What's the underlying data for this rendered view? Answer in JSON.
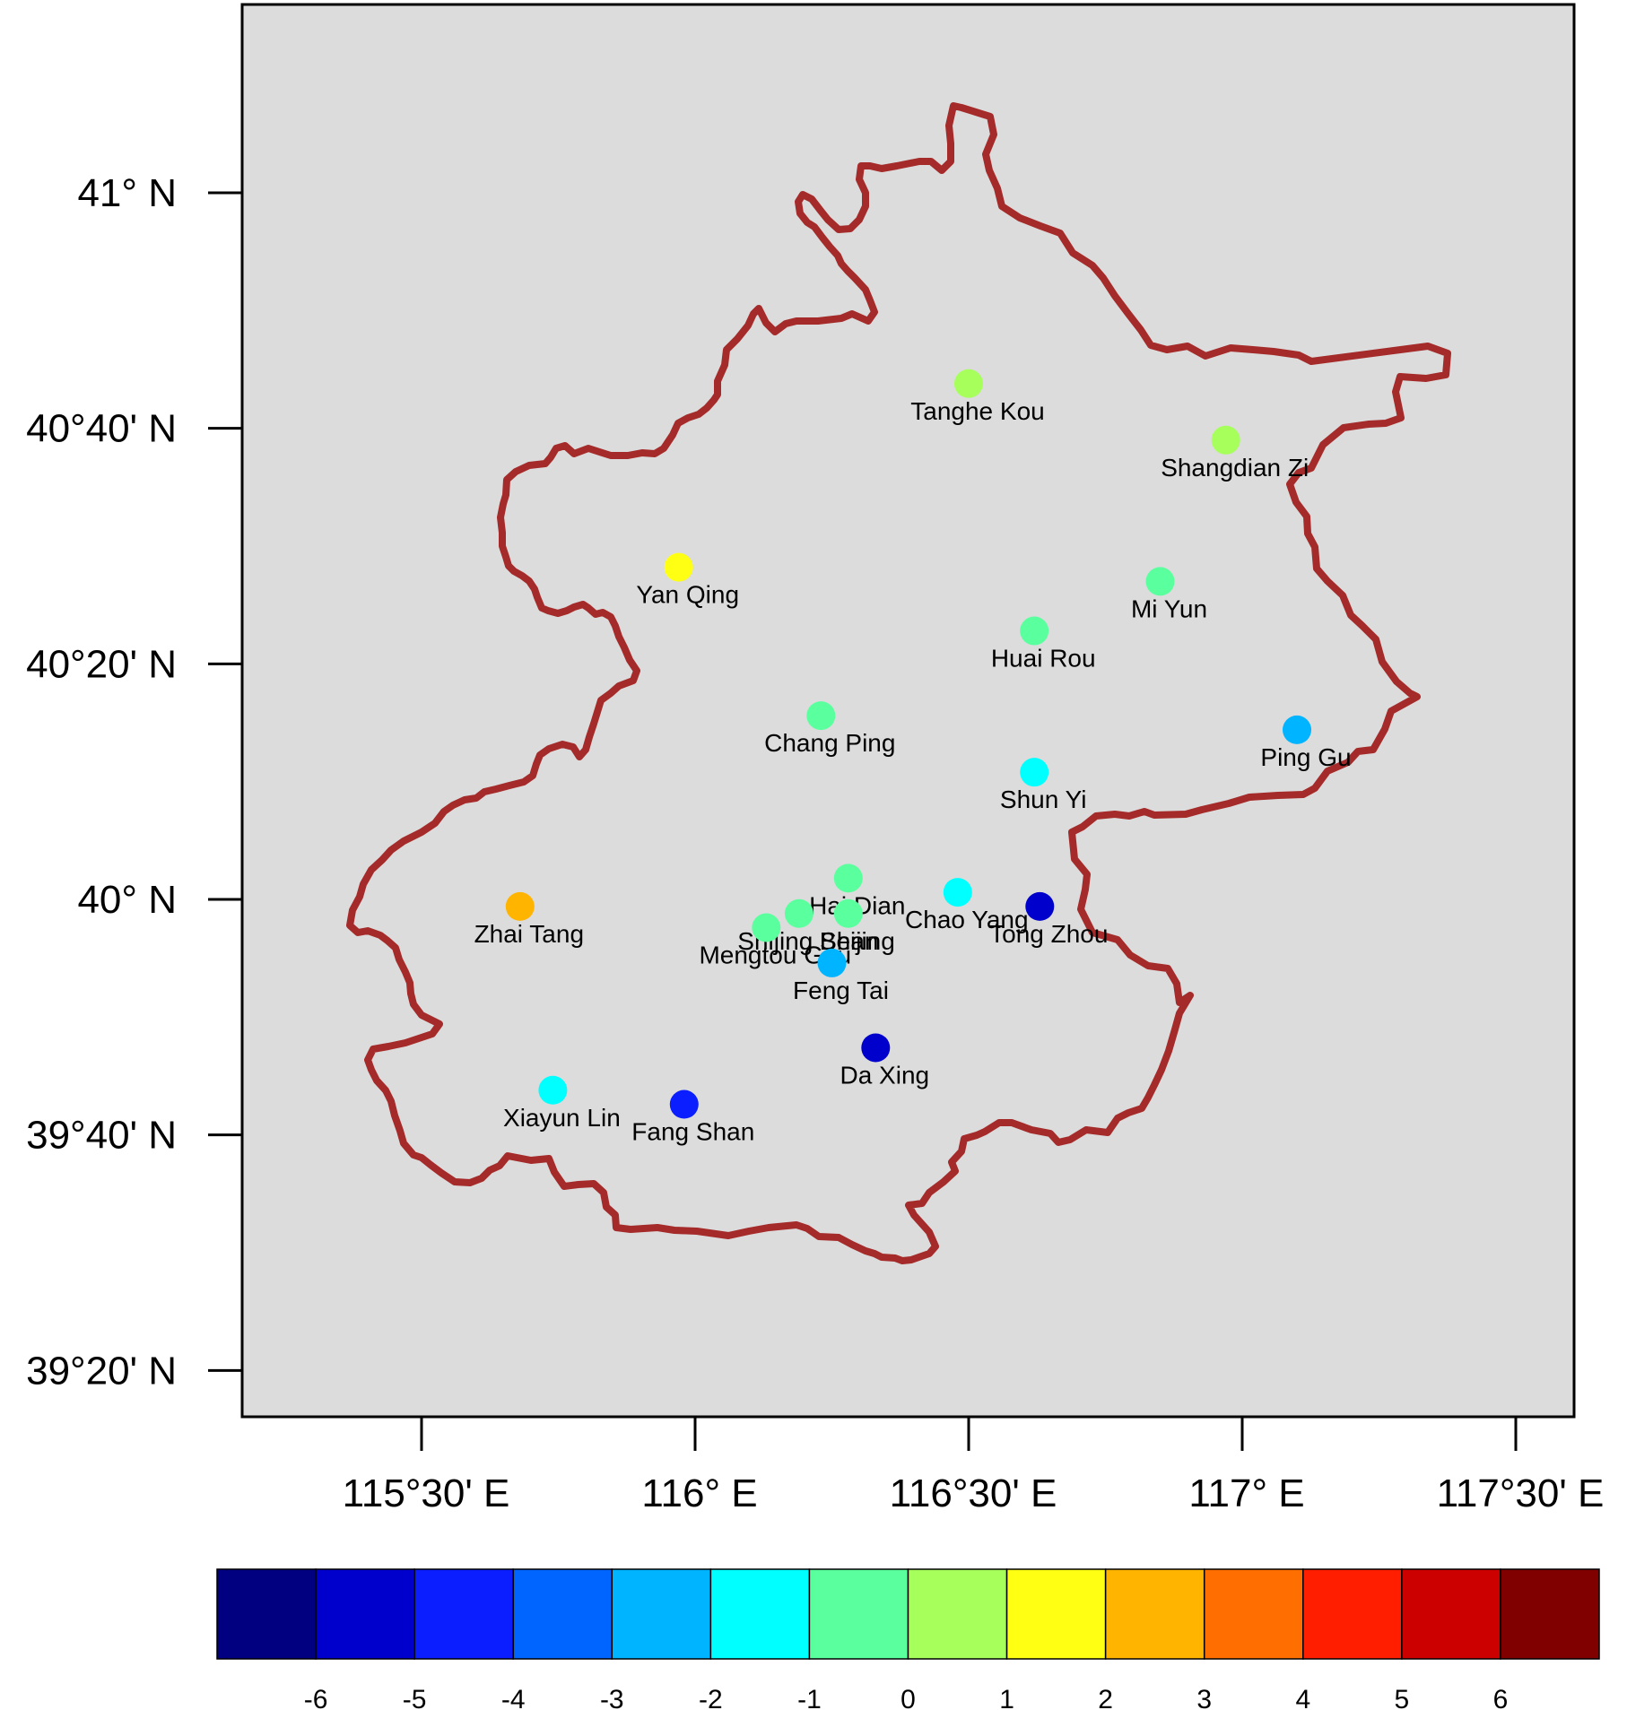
{
  "map": {
    "frame_color": "#dcdcdc",
    "boundary_color": "#a52a2a",
    "lon_ticks": [
      {
        "lon": 115.5,
        "label": "115°30' E"
      },
      {
        "lon": 116.0,
        "label": "116° E"
      },
      {
        "lon": 116.5,
        "label": "116°30' E"
      },
      {
        "lon": 117.0,
        "label": "117° E"
      },
      {
        "lon": 117.5,
        "label": "117°30' E"
      }
    ],
    "lat_ticks": [
      {
        "lat": 41.0,
        "label": "41° N"
      },
      {
        "lat": 40.6667,
        "label": "40°40' N"
      },
      {
        "lat": 40.3333,
        "label": "40°20' N"
      },
      {
        "lat": 40.0,
        "label": "40° N"
      },
      {
        "lat": 39.6667,
        "label": "39°40' N"
      },
      {
        "lat": 39.3333,
        "label": "39°20' N"
      }
    ],
    "stations": [
      {
        "name": "Tanghe Kou",
        "lon": 116.5,
        "lat": 40.73,
        "value": 0.5
      },
      {
        "name": "Shangdian Zi",
        "lon": 116.97,
        "lat": 40.65,
        "value": 0.5
      },
      {
        "name": "Yan Qing",
        "lon": 115.97,
        "lat": 40.47,
        "value": 1.5
      },
      {
        "name": "Mi Yun",
        "lon": 116.85,
        "lat": 40.45,
        "value": -0.5
      },
      {
        "name": "Huai Rou",
        "lon": 116.62,
        "lat": 40.38,
        "value": -0.5
      },
      {
        "name": "Chang Ping",
        "lon": 116.23,
        "lat": 40.26,
        "value": -0.5
      },
      {
        "name": "Ping Gu",
        "lon": 117.1,
        "lat": 40.24,
        "value": -2.5
      },
      {
        "name": "Shun Yi",
        "lon": 116.62,
        "lat": 40.18,
        "value": -1.5
      },
      {
        "name": "Hai Dian",
        "lon": 116.28,
        "lat": 40.03,
        "value": -0.5
      },
      {
        "name": "Chao Yang",
        "lon": 116.48,
        "lat": 40.01,
        "value": -1.5
      },
      {
        "name": "Shijing Shan",
        "lon": 116.19,
        "lat": 39.98,
        "value": -0.5
      },
      {
        "name": "Beijing",
        "lon": 116.28,
        "lat": 39.98,
        "value": -0.5
      },
      {
        "name": "Tong Zhou",
        "lon": 116.63,
        "lat": 39.99,
        "value": -5.5
      },
      {
        "name": "Zhai Tang",
        "lon": 115.68,
        "lat": 39.99,
        "value": 2.5
      },
      {
        "name": "Mengtou Gou",
        "lon": 116.13,
        "lat": 39.96,
        "value": -0.5
      },
      {
        "name": "Feng Tai",
        "lon": 116.25,
        "lat": 39.91,
        "value": -2.5
      },
      {
        "name": "Da Xing",
        "lon": 116.33,
        "lat": 39.79,
        "value": -5.5
      },
      {
        "name": "Xiayun Lin",
        "lon": 115.74,
        "lat": 39.73,
        "value": -1.5
      },
      {
        "name": "Fang Shan",
        "lon": 115.98,
        "lat": 39.71,
        "value": -4.5
      }
    ]
  },
  "colorbar": {
    "colors": [
      "#000080",
      "#0000cd",
      "#0a1eff",
      "#0064ff",
      "#00b4ff",
      "#00ffff",
      "#5aff9e",
      "#a6ff5a",
      "#ffff14",
      "#ffb400",
      "#ff6e00",
      "#ff1e00",
      "#cd0000",
      "#800000"
    ],
    "labels": [
      "-6",
      "-5",
      "-4",
      "-3",
      "-2",
      "-1",
      "0",
      "1",
      "2",
      "3",
      "4",
      "5",
      "6"
    ]
  }
}
